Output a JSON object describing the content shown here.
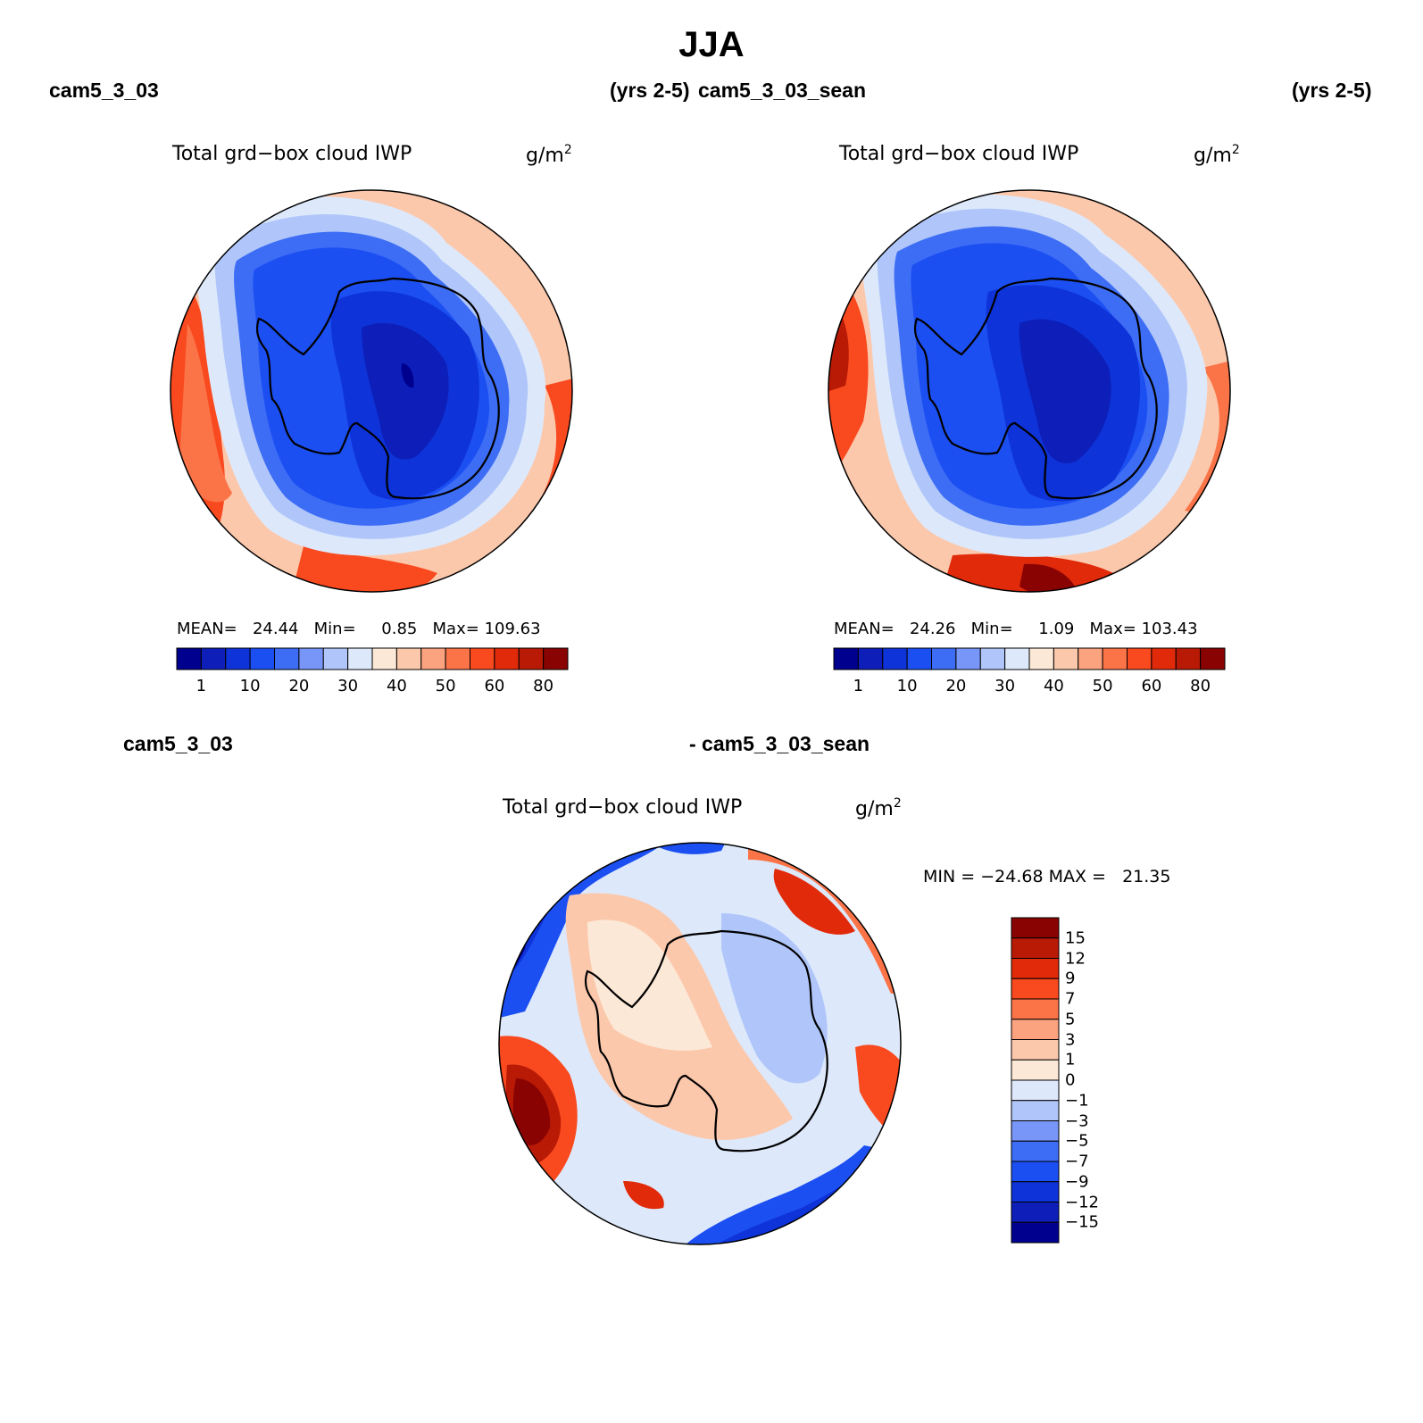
{
  "page": {
    "title": "JJA"
  },
  "panels": [
    {
      "case_name": "cam5_3_03",
      "years": "(yrs 2-5)",
      "title": "Total grd−box cloud IWP",
      "units": "g/m",
      "units_power": "2",
      "stats": {
        "mean_label": "MEAN=",
        "mean": "24.44",
        "min_label": "Min=",
        "min": "0.85",
        "max_label": "Max=",
        "max": "109.63"
      },
      "colorbar_ticks": [
        "1",
        "10",
        "20",
        "30",
        "40",
        "50",
        "60",
        "80"
      ]
    },
    {
      "case_name": "cam5_3_03_sean",
      "years": "(yrs 2-5)",
      "title": "Total grd−box cloud IWP",
      "units": "g/m",
      "units_power": "2",
      "stats": {
        "mean_label": "MEAN=",
        "mean": "24.26",
        "min_label": "Min=",
        "min": "1.09",
        "max_label": "Max=",
        "max": "103.43"
      },
      "colorbar_ticks": [
        "1",
        "10",
        "20",
        "30",
        "40",
        "50",
        "60",
        "80"
      ]
    }
  ],
  "diff_panel": {
    "case_a": "cam5_3_03",
    "case_b": "- cam5_3_03_sean",
    "title": "Total grd−box cloud IWP",
    "units": "g/m",
    "units_power": "2",
    "stats": {
      "min_label": "MIN =",
      "min": "−24.68",
      "max_label": "MAX =",
      "max": "21.35"
    },
    "colorbar_ticks": [
      "15",
      "12",
      "9",
      "7",
      "5",
      "3",
      "1",
      "0",
      "−1",
      "−3",
      "−5",
      "−7",
      "−9",
      "−12",
      "−15"
    ]
  },
  "colors": {
    "field_scale": [
      "#00008f",
      "#0d1fb8",
      "#0e33d9",
      "#1c4ff2",
      "#3d6df5",
      "#7896f7",
      "#b0c6fa",
      "#dde9fb",
      "#fce8d6",
      "#fcc8ac",
      "#fba27e",
      "#fb7448",
      "#f9491f",
      "#e12a0a",
      "#b81a06",
      "#8a0303"
    ],
    "diff_scale": [
      "#8a0303",
      "#b81a06",
      "#e12a0a",
      "#f9491f",
      "#fb7448",
      "#fba27e",
      "#fcc8ac",
      "#fce8d6",
      "#dde9fb",
      "#b0c6fa",
      "#7896f7",
      "#3d6df5",
      "#1c4ff2",
      "#0e33d9",
      "#0d1fb8",
      "#00008f"
    ]
  }
}
